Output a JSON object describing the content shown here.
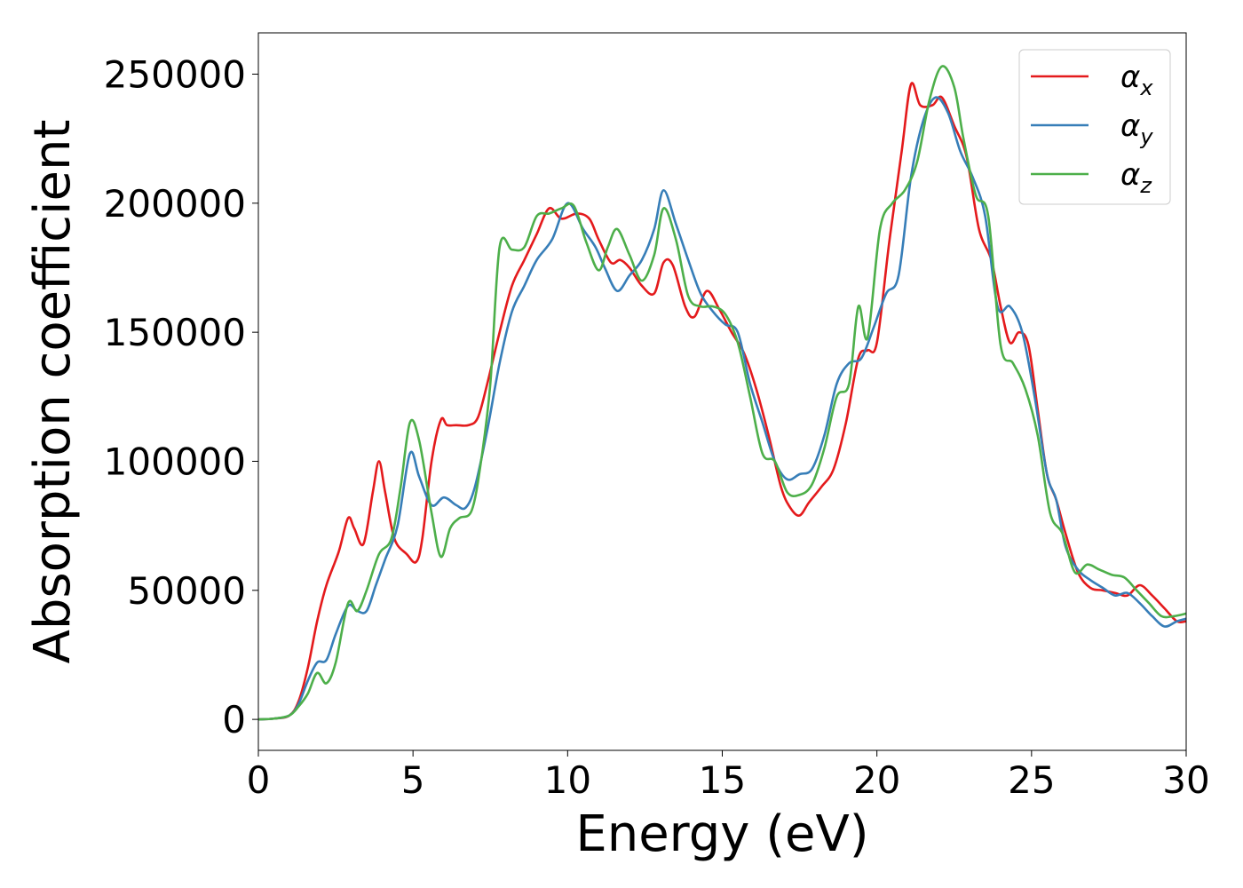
{
  "chart_data": {
    "type": "line",
    "title": "",
    "xlabel": "Energy (eV)",
    "ylabel": "Absorption coefficient",
    "xlim": [
      0,
      30
    ],
    "ylim": [
      -12000,
      266000
    ],
    "xticks": [
      0,
      5,
      10,
      15,
      20,
      25,
      30
    ],
    "xtick_labels": [
      "0",
      "5",
      "10",
      "15",
      "20",
      "25",
      "30"
    ],
    "yticks": [
      0,
      50000,
      100000,
      150000,
      200000,
      250000
    ],
    "ytick_labels": [
      "0",
      "50000",
      "100000",
      "150000",
      "200000",
      "250000"
    ],
    "grid": false,
    "legend_position": "top-right",
    "series": [
      {
        "name": "α",
        "subscript": "x",
        "color": "#e41a1c",
        "x": [
          0,
          0.5,
          1.0,
          1.3,
          1.6,
          1.9,
          2.2,
          2.6,
          2.9,
          3.1,
          3.4,
          3.7,
          3.9,
          4.1,
          4.4,
          4.8,
          5.1,
          5.3,
          5.6,
          5.9,
          6.1,
          6.4,
          6.8,
          7.1,
          7.4,
          7.8,
          8.2,
          8.6,
          9.0,
          9.4,
          9.8,
          10.3,
          10.7,
          11.0,
          11.4,
          11.7,
          12.0,
          12.4,
          12.8,
          13.1,
          13.4,
          13.8,
          14.1,
          14.5,
          14.9,
          15.3,
          15.7,
          16.1,
          16.5,
          16.9,
          17.2,
          17.5,
          17.8,
          18.2,
          18.6,
          19.0,
          19.4,
          19.7,
          20.0,
          20.4,
          20.8,
          21.1,
          21.4,
          21.8,
          22.1,
          22.5,
          22.9,
          23.3,
          23.7,
          24.0,
          24.3,
          24.6,
          24.9,
          25.2,
          25.5,
          25.8,
          26.1,
          26.5,
          26.9,
          27.3,
          27.7,
          28.1,
          28.5,
          28.9,
          29.3,
          29.7,
          30.0
        ],
        "values": [
          0,
          300,
          1500,
          7000,
          20000,
          38000,
          52000,
          65000,
          78000,
          74000,
          68000,
          88000,
          100000,
          88000,
          70000,
          64000,
          61000,
          70000,
          100000,
          116000,
          114000,
          114000,
          114000,
          117000,
          130000,
          150000,
          168000,
          178000,
          188000,
          198000,
          194000,
          196000,
          194000,
          186000,
          177000,
          178000,
          175000,
          168000,
          165000,
          177000,
          176000,
          160000,
          156000,
          166000,
          159000,
          150000,
          142000,
          128000,
          110000,
          90000,
          82000,
          79000,
          84000,
          90000,
          97000,
          115000,
          140000,
          143000,
          146000,
          185000,
          220000,
          246000,
          238000,
          238000,
          241000,
          230000,
          218000,
          190000,
          178000,
          160000,
          146000,
          150000,
          145000,
          120000,
          95000,
          85000,
          72000,
          57000,
          51000,
          50000,
          49000,
          48000,
          52000,
          48000,
          43000,
          38000,
          38000
        ]
      },
      {
        "name": "α",
        "subscript": "y",
        "color": "#377eb8",
        "x": [
          0,
          0.5,
          1.0,
          1.3,
          1.6,
          1.9,
          2.2,
          2.5,
          2.9,
          3.2,
          3.5,
          3.8,
          4.1,
          4.5,
          4.9,
          5.2,
          5.6,
          6.0,
          6.4,
          6.7,
          7.0,
          7.4,
          7.8,
          8.2,
          8.6,
          9.0,
          9.5,
          10.0,
          10.5,
          10.9,
          11.2,
          11.6,
          12.0,
          12.4,
          12.8,
          13.1,
          13.5,
          13.9,
          14.3,
          14.7,
          15.1,
          15.5,
          15.9,
          16.3,
          16.7,
          17.1,
          17.5,
          17.9,
          18.3,
          18.7,
          19.1,
          19.5,
          19.9,
          20.3,
          20.7,
          21.1,
          21.5,
          21.9,
          22.3,
          22.7,
          23.1,
          23.5,
          23.9,
          24.3,
          24.7,
          25.1,
          25.5,
          25.8,
          26.1,
          26.5,
          26.9,
          27.3,
          27.7,
          28.1,
          28.5,
          28.9,
          29.3,
          29.7,
          30.0
        ],
        "values": [
          0,
          300,
          1500,
          6000,
          15000,
          22000,
          23000,
          33000,
          44000,
          42000,
          42000,
          52000,
          62000,
          75000,
          103000,
          94000,
          83000,
          86000,
          83000,
          82000,
          90000,
          112000,
          138000,
          158000,
          168000,
          178000,
          186000,
          200000,
          190000,
          183000,
          175000,
          166000,
          172000,
          178000,
          190000,
          205000,
          192000,
          178000,
          165000,
          158000,
          153000,
          150000,
          130000,
          115000,
          100000,
          93000,
          95000,
          97000,
          110000,
          130000,
          138000,
          140000,
          152000,
          165000,
          172000,
          210000,
          232000,
          241000,
          235000,
          220000,
          210000,
          195000,
          160000,
          160000,
          150000,
          125000,
          95000,
          85000,
          67000,
          58000,
          54000,
          51000,
          48000,
          49000,
          45000,
          40000,
          36000,
          38000,
          39000
        ]
      },
      {
        "name": "α",
        "subscript": "z",
        "color": "#4daf4a",
        "x": [
          0,
          0.5,
          1.0,
          1.3,
          1.6,
          1.9,
          2.2,
          2.5,
          2.9,
          3.2,
          3.5,
          3.9,
          4.3,
          4.6,
          4.9,
          5.2,
          5.6,
          5.9,
          6.2,
          6.5,
          6.9,
          7.2,
          7.5,
          7.8,
          8.2,
          8.6,
          9.0,
          9.4,
          9.8,
          10.2,
          10.6,
          11.0,
          11.3,
          11.6,
          12.0,
          12.4,
          12.8,
          13.1,
          13.5,
          13.9,
          14.3,
          14.7,
          15.1,
          15.5,
          15.9,
          16.3,
          16.7,
          17.1,
          17.5,
          17.9,
          18.3,
          18.7,
          19.1,
          19.4,
          19.7,
          20.1,
          20.5,
          20.9,
          21.3,
          21.7,
          22.1,
          22.5,
          22.8,
          23.2,
          23.6,
          24.0,
          24.4,
          24.8,
          25.2,
          25.6,
          26.0,
          26.4,
          26.8,
          27.2,
          27.6,
          28.0,
          28.4,
          28.8,
          29.2,
          29.6,
          30.0
        ],
        "values": [
          0,
          300,
          1500,
          5000,
          10000,
          18000,
          14000,
          22000,
          45000,
          42000,
          50000,
          64000,
          70000,
          90000,
          115000,
          108000,
          80000,
          63000,
          74000,
          78000,
          81000,
          100000,
          130000,
          183000,
          182000,
          183000,
          195000,
          196000,
          198000,
          199000,
          185000,
          174000,
          183000,
          190000,
          180000,
          170000,
          180000,
          198000,
          186000,
          164000,
          160000,
          160000,
          157000,
          146000,
          125000,
          103000,
          100000,
          88000,
          87000,
          91000,
          105000,
          125000,
          130000,
          160000,
          148000,
          190000,
          200000,
          205000,
          216000,
          240000,
          253000,
          245000,
          225000,
          203000,
          195000,
          145000,
          138000,
          128000,
          110000,
          80000,
          72000,
          57000,
          60000,
          58000,
          56000,
          55000,
          50000,
          45000,
          40000,
          40000,
          41000
        ]
      }
    ]
  }
}
